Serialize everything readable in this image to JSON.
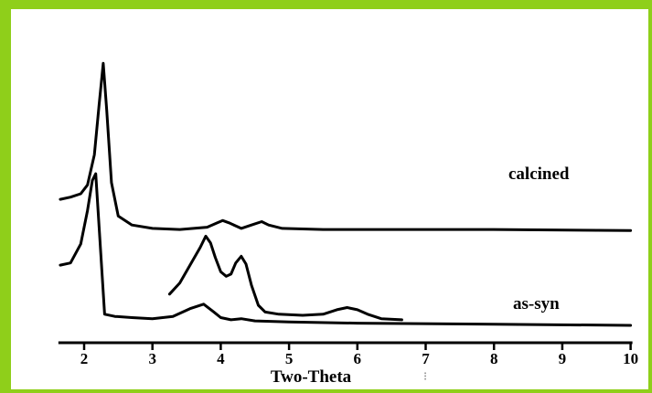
{
  "chart_data": {
    "type": "line",
    "title": "",
    "xlabel": "Two-Theta",
    "ylabel": "",
    "xlim": [
      1.65,
      10
    ],
    "ticks": [
      2,
      3,
      4,
      5,
      6,
      7,
      8,
      9,
      10
    ],
    "tick_labels": [
      "2",
      "3",
      "4",
      "5",
      "6",
      "7",
      "8",
      "9",
      "10"
    ],
    "grid": false,
    "series": [
      {
        "name": "calcined",
        "x": [
          1.65,
          1.8,
          1.95,
          2.05,
          2.15,
          2.22,
          2.28,
          2.33,
          2.4,
          2.5,
          2.7,
          3.0,
          3.4,
          3.8,
          3.95,
          4.03,
          4.12,
          4.3,
          4.45,
          4.6,
          4.7,
          4.9,
          5.5,
          6.5,
          8.0,
          10.0
        ],
        "y": [
          1.45,
          1.47,
          1.5,
          1.58,
          1.85,
          2.3,
          2.67,
          2.25,
          1.6,
          1.3,
          1.22,
          1.19,
          1.18,
          1.2,
          1.24,
          1.26,
          1.24,
          1.19,
          1.22,
          1.25,
          1.22,
          1.19,
          1.18,
          1.18,
          1.18,
          1.17
        ]
      },
      {
        "name": "as-syn",
        "x": [
          1.65,
          1.8,
          1.95,
          2.05,
          2.12,
          2.17,
          2.22,
          2.3,
          2.45,
          2.7,
          3.0,
          3.3,
          3.55,
          3.75,
          3.9,
          4.0,
          4.15,
          4.3,
          4.5,
          5.0,
          6.0,
          8.0,
          10.0
        ],
        "y": [
          0.86,
          0.88,
          1.05,
          1.35,
          1.62,
          1.68,
          1.2,
          0.42,
          0.4,
          0.39,
          0.38,
          0.4,
          0.47,
          0.51,
          0.44,
          0.39,
          0.37,
          0.38,
          0.36,
          0.35,
          0.34,
          0.33,
          0.32
        ]
      },
      {
        "name": "as-syn",
        "x": [
          3.25,
          3.4,
          3.55,
          3.7,
          3.78,
          3.85,
          3.92,
          4.0,
          4.08,
          4.15,
          4.22,
          4.3,
          4.37,
          4.45,
          4.55,
          4.65,
          4.85,
          5.2,
          5.5,
          5.7,
          5.85,
          6.0,
          6.15,
          6.35,
          6.65
        ],
        "y": [
          0.6,
          0.7,
          0.86,
          1.02,
          1.12,
          1.06,
          0.93,
          0.8,
          0.76,
          0.78,
          0.88,
          0.94,
          0.87,
          0.68,
          0.5,
          0.44,
          0.42,
          0.41,
          0.42,
          0.46,
          0.48,
          0.46,
          0.42,
          0.38,
          0.37
        ]
      }
    ],
    "labels": {
      "calcined": "calcined",
      "as_syn": "as-syn"
    }
  }
}
